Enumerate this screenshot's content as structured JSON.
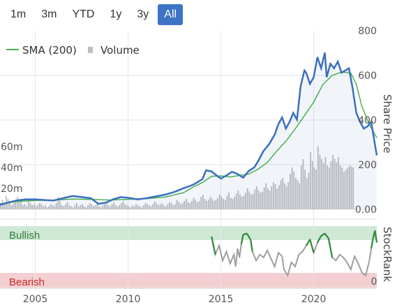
{
  "range_buttons": [
    {
      "label": "1m",
      "active": false
    },
    {
      "label": "3m",
      "active": false
    },
    {
      "label": "YTD",
      "active": false
    },
    {
      "label": "1y",
      "active": false
    },
    {
      "label": "3y",
      "active": false
    },
    {
      "label": "All",
      "active": true
    }
  ],
  "colors": {
    "price": "#3a6fbf",
    "sma": "#4caf50",
    "volume": "#bdbdbd",
    "bullish_band": "#cfe8d6",
    "bearish_band": "#f4cfd1",
    "bullish_text": "#2e7d32",
    "bearish_text": "#c62828",
    "active_button": "#3d74c6"
  },
  "chart_data": {
    "type": "line",
    "legend": [
      {
        "name": "SMA (200)",
        "marker": "line"
      },
      {
        "name": "Volume",
        "marker": "square"
      }
    ],
    "legend_position": "top-left",
    "price_axis": {
      "label": "Share Price",
      "ticks": [
        "800",
        "600",
        "400",
        "200",
        "0.00"
      ],
      "range": [
        0,
        800
      ]
    },
    "volume_axis": {
      "ticks": [
        "60m",
        "40m",
        "20m"
      ],
      "range": [
        0,
        80
      ]
    },
    "x_axis": {
      "ticks": [
        "2005",
        "2010",
        "2015",
        "2020"
      ],
      "range": [
        2003.1,
        2023.4
      ]
    },
    "price": {
      "x": [
        2003.1,
        2003.6,
        2004.0,
        2004.5,
        2005.0,
        2005.5,
        2006.0,
        2006.5,
        2007.0,
        2007.5,
        2008.0,
        2008.4,
        2008.8,
        2009.2,
        2009.6,
        2010.0,
        2010.5,
        2011.0,
        2011.5,
        2012.0,
        2012.5,
        2013.0,
        2013.5,
        2014.0,
        2014.2,
        2014.5,
        2014.8,
        2015.0,
        2015.3,
        2015.6,
        2015.9,
        2016.2,
        2016.5,
        2016.8,
        2017.0,
        2017.3,
        2017.6,
        2017.9,
        2018.1,
        2018.3,
        2018.5,
        2018.7,
        2018.9,
        2019.1,
        2019.3,
        2019.5,
        2019.6,
        2019.8,
        2020.0,
        2020.2,
        2020.4,
        2020.6,
        2020.7,
        2020.9,
        2021.1,
        2021.3,
        2021.5,
        2021.7,
        2021.9,
        2022.1,
        2022.3,
        2022.5,
        2022.7,
        2022.9,
        2023.1,
        2023.3,
        2023.4
      ],
      "y": [
        20,
        32,
        40,
        45,
        45,
        42,
        40,
        50,
        60,
        55,
        50,
        25,
        30,
        45,
        55,
        52,
        45,
        50,
        58,
        66,
        78,
        95,
        110,
        135,
        175,
        170,
        150,
        138,
        152,
        168,
        158,
        142,
        172,
        188,
        215,
        262,
        292,
        335,
        382,
        412,
        362,
        392,
        432,
        402,
        552,
        622,
        612,
        562,
        592,
        682,
        632,
        702,
        592,
        652,
        632,
        662,
        612,
        622,
        632,
        542,
        432,
        392,
        362,
        372,
        392,
        292,
        242
      ]
    },
    "sma": {
      "x": [
        2003.1,
        2004.0,
        2005.0,
        2006.0,
        2007.0,
        2008.0,
        2009.0,
        2010.0,
        2011.0,
        2012.0,
        2013.0,
        2013.5,
        2014.0,
        2014.5,
        2015.0,
        2015.5,
        2016.0,
        2016.5,
        2017.0,
        2017.5,
        2018.0,
        2018.5,
        2019.0,
        2019.5,
        2020.0,
        2020.5,
        2021.0,
        2021.5,
        2022.0,
        2022.3,
        2022.6,
        2023.0,
        2023.4
      ],
      "y": [
        25,
        35,
        40,
        42,
        46,
        45,
        42,
        45,
        48,
        55,
        75,
        100,
        120,
        148,
        150,
        145,
        152,
        158,
        180,
        210,
        260,
        305,
        360,
        420,
        480,
        560,
        600,
        615,
        610,
        560,
        460,
        380,
        320
      ]
    },
    "volume": {
      "start": 2003.1,
      "step": 0.1,
      "values": [
        6,
        9,
        5,
        13,
        10,
        8,
        4,
        6,
        9,
        12,
        10,
        7,
        4,
        5,
        3,
        8,
        6,
        4,
        5,
        3,
        4,
        6,
        5,
        3,
        4,
        2,
        3,
        5,
        4,
        3,
        6,
        12,
        8,
        4,
        3,
        5,
        7,
        4,
        3,
        2,
        4,
        6,
        3,
        4,
        5,
        3,
        2,
        4,
        6,
        5,
        3,
        4,
        5,
        3,
        2,
        4,
        5,
        6,
        4,
        3,
        5,
        7,
        4,
        3,
        4,
        6,
        8,
        5,
        4,
        3,
        2,
        4,
        3,
        5,
        4,
        3,
        2,
        4,
        6,
        5,
        4,
        3,
        5,
        8,
        6,
        4,
        5,
        6,
        4,
        3,
        5,
        7,
        6,
        4,
        5,
        9,
        7,
        5,
        6,
        8,
        10,
        7,
        6,
        8,
        11,
        9,
        7,
        8,
        12,
        14,
        10,
        8,
        9,
        12,
        10,
        8,
        9,
        11,
        14,
        12,
        10,
        9,
        13,
        16,
        11,
        10,
        12,
        15,
        18,
        14,
        12,
        13,
        16,
        20,
        17,
        14,
        15,
        19,
        22,
        18,
        16,
        17,
        21,
        25,
        20,
        18,
        22,
        26,
        24,
        20,
        23,
        28,
        30,
        25,
        22,
        26,
        34,
        40,
        36,
        30,
        28,
        25,
        42,
        48,
        38,
        30,
        35,
        55,
        46,
        40,
        38,
        60,
        52,
        48,
        44,
        50,
        42,
        40,
        46,
        52,
        48,
        45,
        50,
        42,
        40,
        36,
        38,
        40,
        42,
        41,
        40
      ]
    },
    "stockrank": {
      "label": "StockRank",
      "bullish_label": "Bullish",
      "bearish_label": "Bearish",
      "tick": "0",
      "range": [
        0,
        100
      ],
      "x": [
        2014.5,
        2014.7,
        2014.9,
        2015.1,
        2015.3,
        2015.5,
        2015.7,
        2015.8,
        2015.9,
        2016.0,
        2016.1,
        2016.2,
        2016.4,
        2016.6,
        2016.7,
        2016.9,
        2017.1,
        2017.3,
        2017.5,
        2017.7,
        2017.9,
        2018.1,
        2018.3,
        2018.4,
        2018.6,
        2018.8,
        2019.0,
        2019.2,
        2019.4,
        2019.6,
        2019.8,
        2020.0,
        2020.2,
        2020.4,
        2020.6,
        2020.8,
        2021.0,
        2021.2,
        2021.4,
        2021.6,
        2021.8,
        2022.0,
        2022.2,
        2022.4,
        2022.6,
        2022.8,
        2023.0,
        2023.1,
        2023.2,
        2023.3,
        2023.4
      ],
      "y": [
        85,
        55,
        70,
        45,
        60,
        40,
        55,
        35,
        65,
        50,
        72,
        88,
        90,
        80,
        60,
        45,
        55,
        50,
        62,
        48,
        35,
        58,
        52,
        30,
        20,
        42,
        35,
        55,
        60,
        70,
        80,
        58,
        75,
        86,
        90,
        82,
        50,
        45,
        55,
        50,
        42,
        30,
        52,
        40,
        25,
        20,
        45,
        65,
        82,
        95,
        75
      ]
    }
  }
}
